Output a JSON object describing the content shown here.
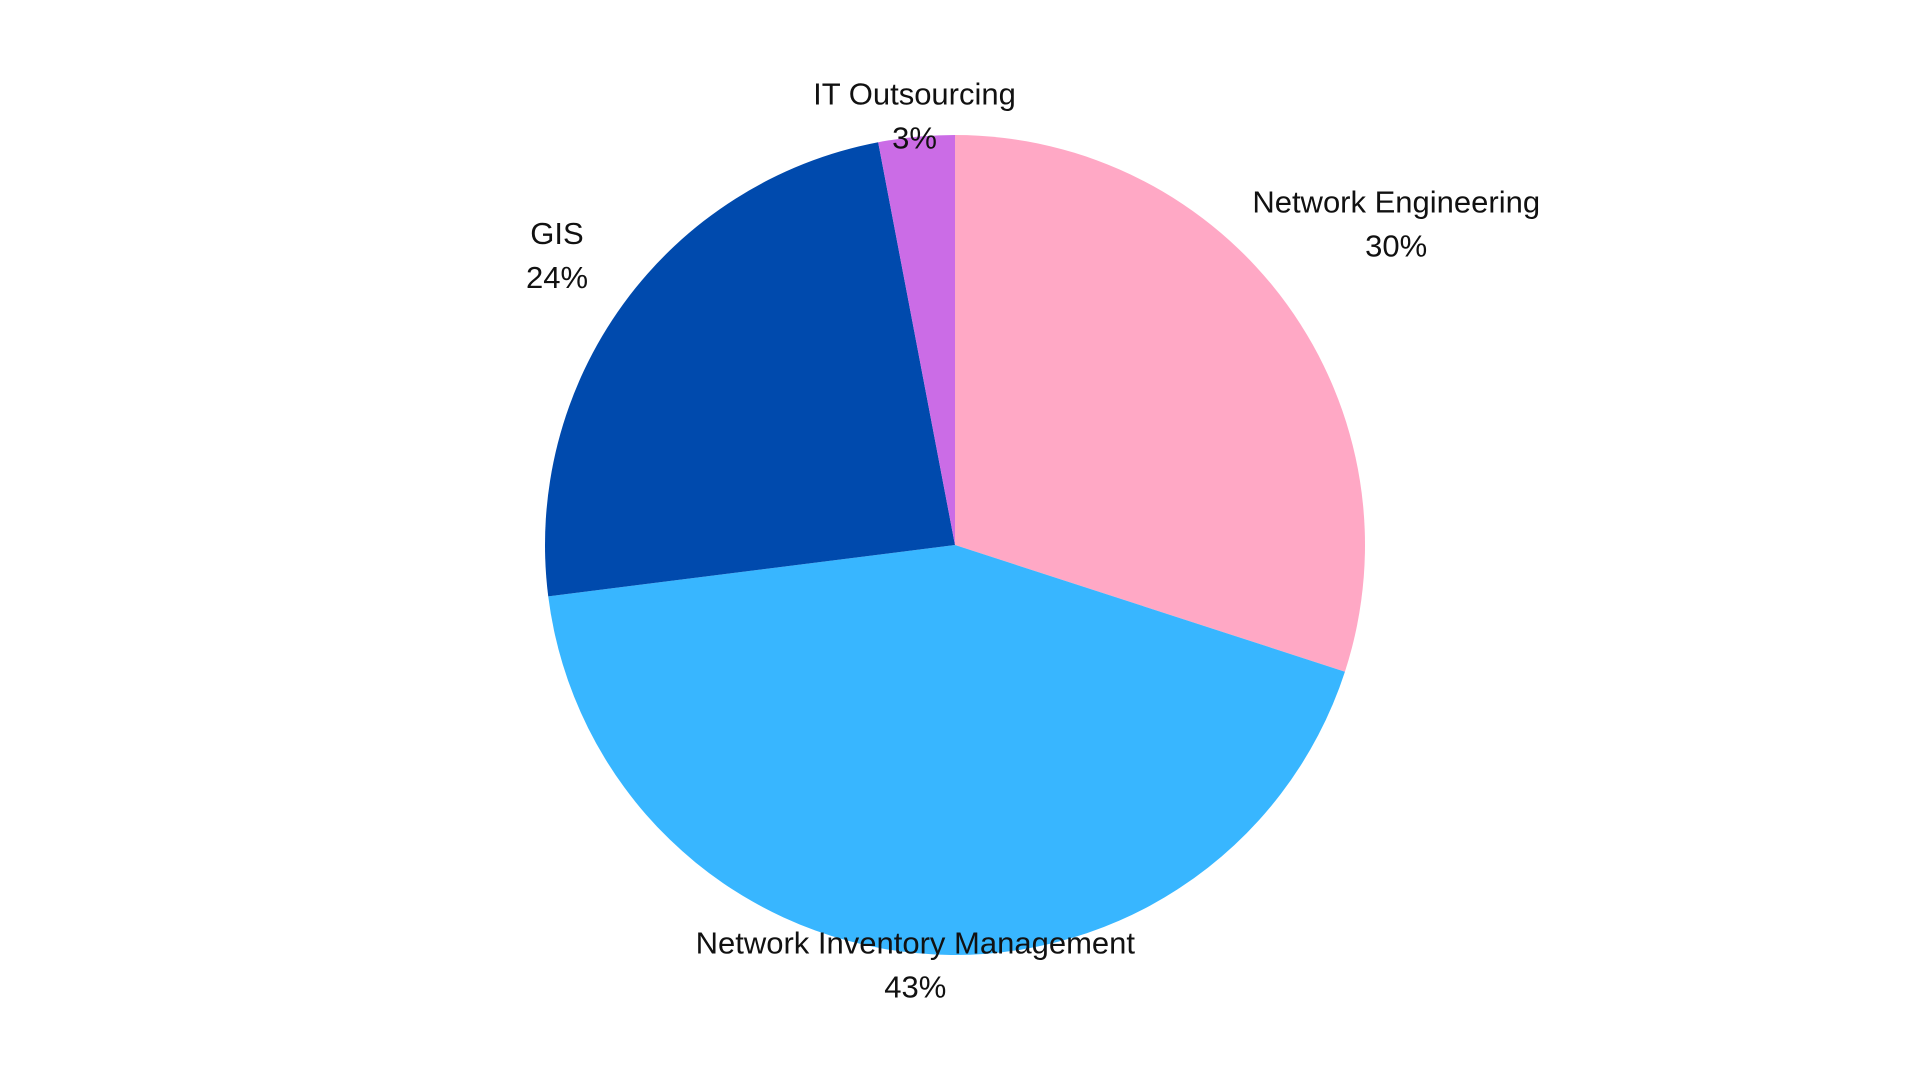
{
  "chart_data": {
    "type": "pie",
    "title": "",
    "start_angle_deg": 0,
    "direction": "clockwise",
    "slices": [
      {
        "label": "Network Engineering",
        "value": 30,
        "value_label": "30%",
        "color": "#FFA8C5"
      },
      {
        "label": "Network Inventory Management",
        "value": 43,
        "value_label": "43%",
        "color": "#38B6FF"
      },
      {
        "label": "GIS",
        "value": 24,
        "value_label": "24%",
        "color": "#004AAD"
      },
      {
        "label": "IT Outsourcing",
        "value": 3,
        "value_label": "3%",
        "color": "#CB6CE6"
      }
    ]
  }
}
